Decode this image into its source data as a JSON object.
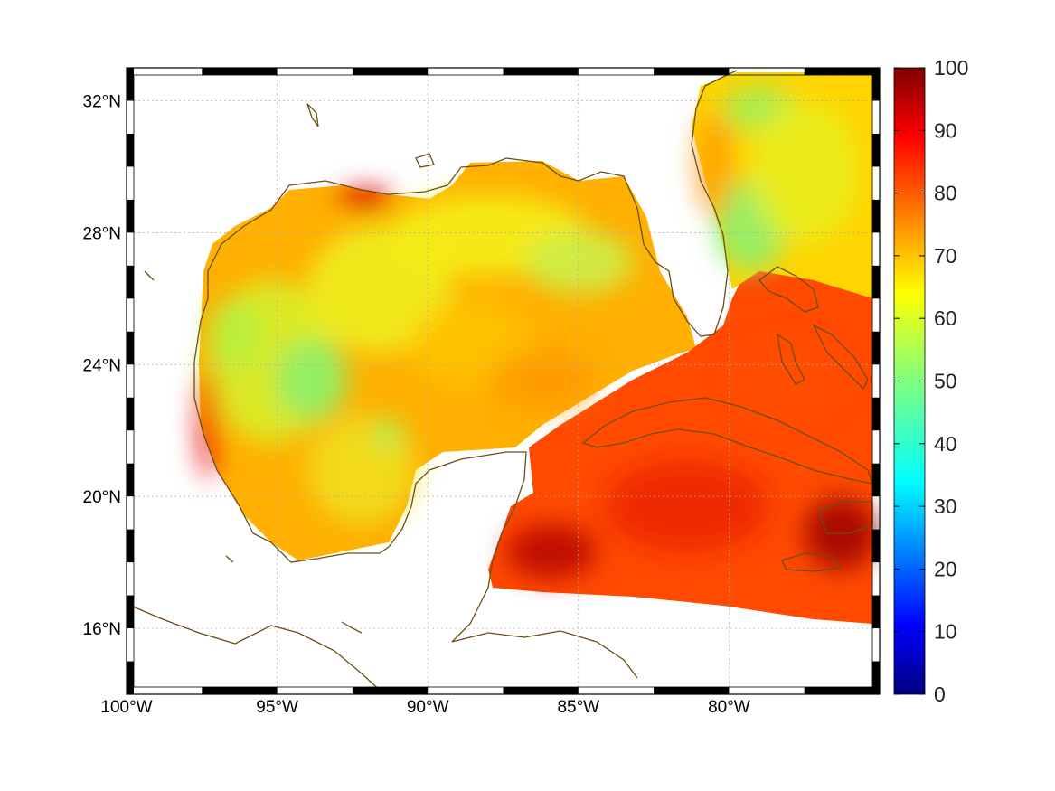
{
  "map": {
    "lon_range": [
      -100,
      -75
    ],
    "lat_range": [
      14,
      33
    ],
    "lon_ticks": [
      {
        "value": -100,
        "label": "100°W"
      },
      {
        "value": -95,
        "label": "95°W"
      },
      {
        "value": -90,
        "label": "90°W"
      },
      {
        "value": -85,
        "label": "85°W"
      },
      {
        "value": -80,
        "label": "80°W"
      }
    ],
    "lat_ticks": [
      {
        "value": 16,
        "label": "16°N"
      },
      {
        "value": 20,
        "label": "20°N"
      },
      {
        "value": 24,
        "label": "24°N"
      },
      {
        "value": 28,
        "label": "28°N"
      },
      {
        "value": 32,
        "label": "32°N"
      }
    ],
    "grid": true,
    "coastline_color": "#6b4e16"
  },
  "colorbar": {
    "ticks": [
      "0",
      "10",
      "20",
      "30",
      "40",
      "50",
      "60",
      "70",
      "80",
      "90",
      "100"
    ],
    "range": [
      0,
      100
    ],
    "colormap": "jet"
  }
}
